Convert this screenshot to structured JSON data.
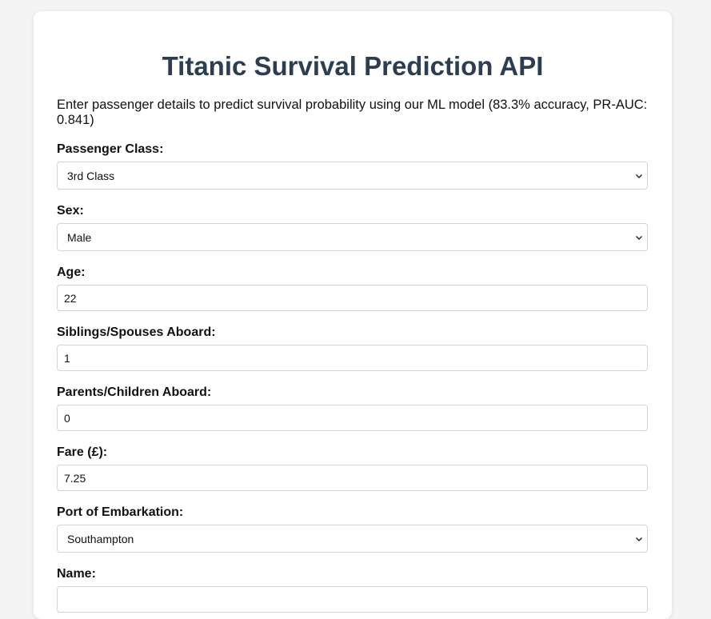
{
  "page": {
    "title": "Titanic Survival Prediction API",
    "description": "Enter passenger details to predict survival probability using our ML model (83.3% accuracy, PR-AUC: 0.841)"
  },
  "form": {
    "pclass": {
      "label": "Passenger Class:",
      "value": "3rd Class"
    },
    "sex": {
      "label": "Sex:",
      "value": "Male"
    },
    "age": {
      "label": "Age:",
      "value": "22"
    },
    "sibsp": {
      "label": "Siblings/Spouses Aboard:",
      "value": "1"
    },
    "parch": {
      "label": "Parents/Children Aboard:",
      "value": "0"
    },
    "fare": {
      "label": "Fare (£):",
      "value": "7.25"
    },
    "embarked": {
      "label": "Port of Embarkation:",
      "value": "Southampton"
    },
    "name": {
      "label": "Name:",
      "value": ""
    }
  },
  "icons": {
    "select_arrow": "chevron-down-icon"
  },
  "colors": {
    "title": "#2c3e50",
    "background": "#f4f4f4",
    "card": "#ffffff",
    "border": "#d4d4d4"
  }
}
